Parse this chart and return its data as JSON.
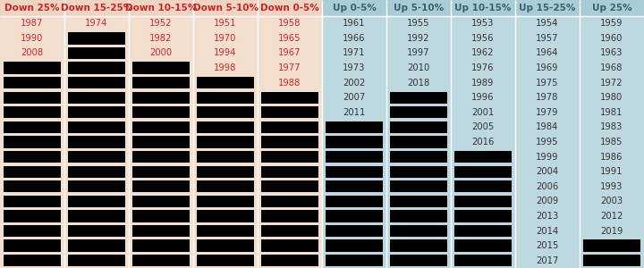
{
  "columns": [
    "Down 25%",
    "Down 15-25%",
    "Down 10-15%",
    "Down 5-10%",
    "Down 0-5%",
    "Up 0-5%",
    "Up 5-10%",
    "Up 10-15%",
    "Up 15-25%",
    "Up 25%"
  ],
  "col_bg_left": "#f2dfd0",
  "col_bg_right": "#bed8e0",
  "header_bg_left": "#efd4c2",
  "header_bg_right": "#a8cdd6",
  "header_text_left": "#cc2222",
  "header_text_right": "#3a5f6f",
  "cell_text_red": "#dd2222",
  "cell_text_dark": "#333333",
  "black_rect": "#000000",
  "num_rows": 17,
  "font_size": 7.2,
  "header_font_size": 7.5,
  "col_data": {
    "Down 25%": [
      "1987",
      "1990",
      "2008",
      null,
      null,
      null,
      null,
      null,
      null,
      null,
      null,
      null,
      null,
      null,
      null,
      null,
      null
    ],
    "Down 15-25%": [
      "1974",
      null,
      null,
      null,
      null,
      null,
      null,
      null,
      null,
      null,
      null,
      null,
      null,
      null,
      null,
      null,
      null
    ],
    "Down 10-15%": [
      "1952",
      "1982",
      "2000",
      null,
      null,
      null,
      null,
      null,
      null,
      null,
      null,
      null,
      null,
      null,
      null,
      null,
      null
    ],
    "Down 5-10%": [
      "1951",
      "1970",
      "1994",
      "1998",
      null,
      null,
      null,
      null,
      null,
      null,
      null,
      null,
      null,
      null,
      null,
      null,
      null
    ],
    "Down 0-5%": [
      "1958",
      "1965",
      "1967",
      "1977",
      "1988",
      null,
      null,
      null,
      null,
      null,
      null,
      null,
      null,
      null,
      null,
      null,
      null
    ],
    "Up 0-5%": [
      "1961",
      "1966",
      "1971",
      "1973",
      "2002",
      "2007",
      "2011",
      null,
      null,
      null,
      null,
      null,
      null,
      null,
      null,
      null,
      null
    ],
    "Up 5-10%": [
      "1955",
      "1992",
      "1997",
      "2010",
      "2018",
      null,
      null,
      null,
      null,
      null,
      null,
      null,
      null,
      null,
      null,
      null,
      null
    ],
    "Up 10-15%": [
      "1953",
      "1956",
      "1962",
      "1976",
      "1989",
      "1996",
      "2001",
      "2005",
      "2016",
      null,
      null,
      null,
      null,
      null,
      null,
      null,
      null
    ],
    "Up 15-25%": [
      "1954",
      "1957",
      "1964",
      "1969",
      "1975",
      "1978",
      "1979",
      "1984",
      "1995",
      "1999",
      "2004",
      "2006",
      "2009",
      "2013",
      "2014",
      "2015",
      "2017"
    ],
    "Up 25%": [
      "1959",
      "1960",
      "1963",
      "1968",
      "1972",
      "1980",
      "1981",
      "1983",
      "1985",
      "1986",
      "1991",
      "1993",
      "2003",
      "2012",
      "2019",
      null,
      null
    ]
  }
}
